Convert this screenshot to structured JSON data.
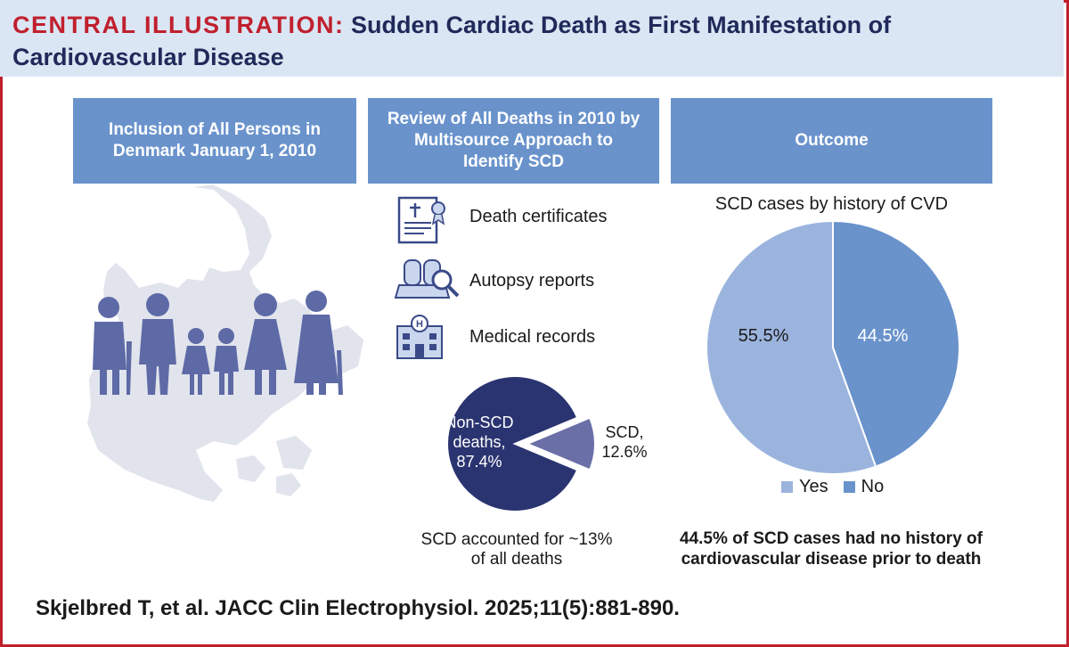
{
  "header": {
    "label": "CENTRAL ILLUSTRATION:",
    "title": "Sudden Cardiac Death as First Manifestation of Cardiovascular Disease"
  },
  "panels": [
    {
      "title": "Inclusion of All Persons in Denmark January 1, 2010"
    },
    {
      "title": "Review of All Deaths in 2010 by Multisource Approach to Identify SCD"
    },
    {
      "title": "Outcome"
    }
  ],
  "sources": [
    {
      "label": "Death certificates",
      "icon": "death-certificate-icon"
    },
    {
      "label": "Autopsy reports",
      "icon": "autopsy-icon"
    },
    {
      "label": "Medical records",
      "icon": "hospital-icon"
    }
  ],
  "colors": {
    "brand_red": "#c0202e",
    "header_bg": "#dbe6f4",
    "title_navy": "#1f2a5a",
    "panel_blue": "#6a93cc",
    "map_gray": "#e1e4ec",
    "people": "#5e6aa6",
    "pie_dark": "#2a3470",
    "pie_light": "#6a6fa8",
    "yes_color": "#9bb4de",
    "no_color": "#6a93cc"
  },
  "chart_data": [
    {
      "type": "pie",
      "slices": [
        {
          "label": "Non-SCD deaths,",
          "pct_label": "87.4%",
          "value": 87.4
        },
        {
          "label": "SCD,",
          "pct_label": "12.6%",
          "value": 12.6
        }
      ],
      "caption_line1": "SCD accounted for ~13%",
      "caption_line2": "of all deaths"
    },
    {
      "type": "pie",
      "title": "SCD cases by history of CVD",
      "slices": [
        {
          "label": "Yes",
          "pct_label": "55.5%",
          "value": 55.5
        },
        {
          "label": "No",
          "pct_label": "44.5%",
          "value": 44.5
        }
      ],
      "legend": [
        "Yes",
        "No"
      ],
      "legend_placement": "bottom",
      "caption_line1": "44.5% of SCD cases had no history of",
      "caption_line2": "cardiovascular disease prior to death"
    }
  ],
  "citation": "Skjelbred T, et al. JACC Clin Electrophysiol. 2025;11(5):881-890."
}
